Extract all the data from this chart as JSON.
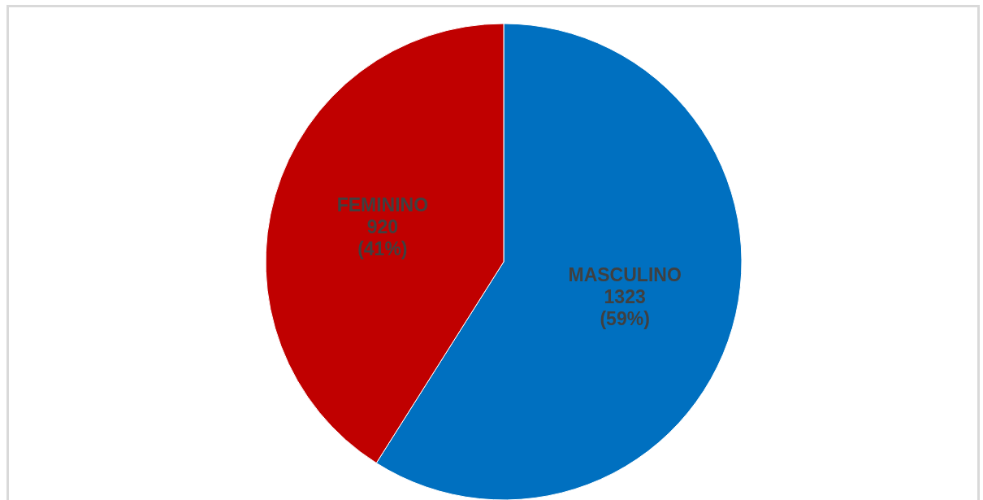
{
  "chart_data": {
    "type": "pie",
    "categories": [
      "MASCULINO",
      "FEMININO"
    ],
    "values": [
      1323,
      920
    ],
    "colors": [
      "#0070c0",
      "#c00000"
    ],
    "value_labels": [
      "1323\n(59%)",
      "920\n(41%)"
    ],
    "legend": false
  }
}
